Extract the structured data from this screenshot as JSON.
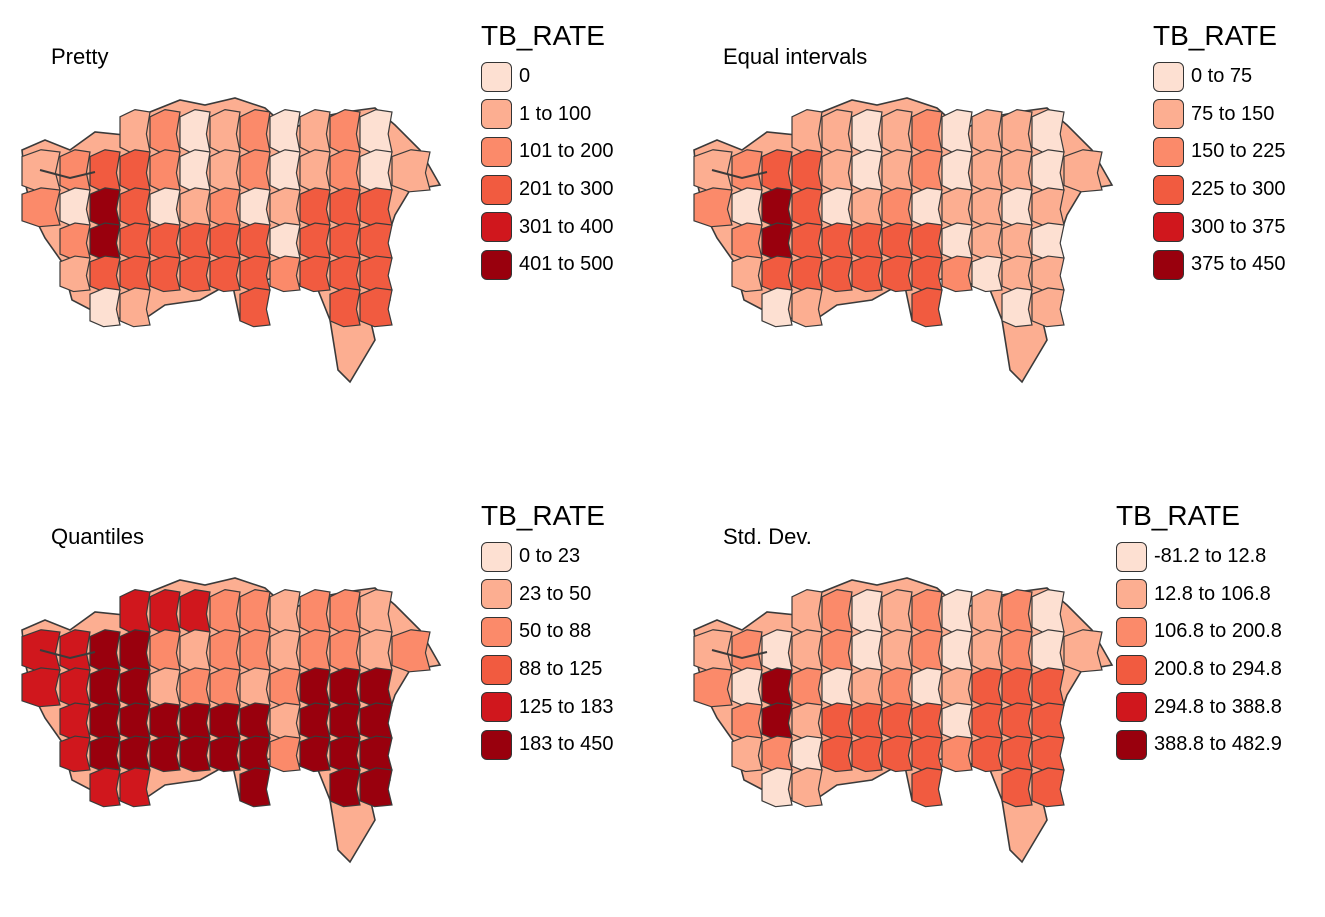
{
  "maps": [
    {
      "title": "Pretty",
      "legend": {
        "title": "TB_RATE",
        "labels": [
          "0",
          "1 to 100",
          "101 to 200",
          "201 to 300",
          "301 to 400",
          "401 to 500"
        ]
      },
      "high_regions": [
        "west-core"
      ],
      "med_regions": [
        "west-inner",
        "center-south",
        "east-block"
      ]
    },
    {
      "title": "Equal intervals",
      "legend": {
        "title": "TB_RATE",
        "labels": [
          "0 to 75",
          "75 to 150",
          "150 to 225",
          "225 to 300",
          "300 to 375",
          "375 to 450"
        ]
      },
      "high_regions": [
        "west-core"
      ],
      "med_regions": [
        "west-inner",
        "center-south"
      ]
    },
    {
      "title": "Quantiles",
      "legend": {
        "title": "TB_RATE",
        "labels": [
          "0 to 23",
          "23 to 50",
          "50 to 88",
          "88 to 125",
          "125 to 183",
          "183 to 450"
        ]
      },
      "high_regions": [
        "west-core",
        "west-inner",
        "center-south",
        "east-block"
      ],
      "med_regions": [
        "west-edge",
        "north-west",
        "south-west"
      ]
    },
    {
      "title": "Std. Dev.",
      "legend": {
        "title": "TB_RATE",
        "labels": [
          "-81.2 to 12.8",
          "12.8 to 106.8",
          "106.8 to 200.8",
          "200.8 to 294.8",
          "294.8 to 388.8",
          "388.8 to 482.9"
        ]
      },
      "high_regions": [
        "west-core"
      ],
      "med_regions": [
        "center-south",
        "east-block"
      ]
    }
  ],
  "colors": {
    "palette": [
      "#fde0d2",
      "#fcae91",
      "#fb8a6a",
      "#f15b40",
      "#d0171d",
      "#99000d"
    ],
    "border": "#3a3a3a"
  }
}
